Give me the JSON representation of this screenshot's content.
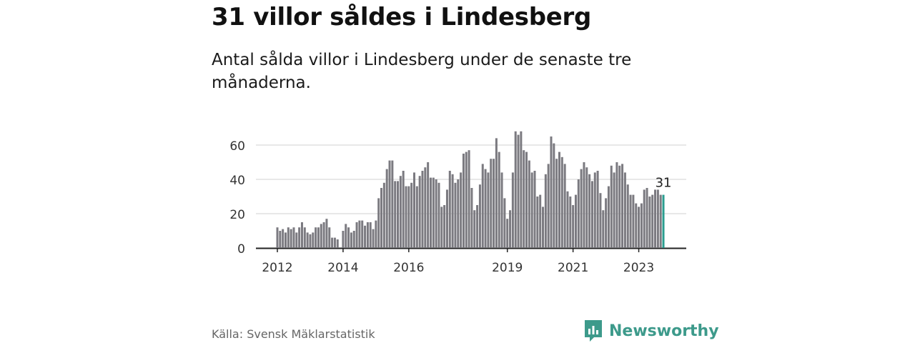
{
  "header": {
    "title": "31 villor såldes i Lindesberg",
    "subtitle": "Antal sålda villor i Lindesberg under de senaste tre månaderna."
  },
  "footer": {
    "source": "Källa: Svensk Mäklarstatistik",
    "brand": "Newsworthy",
    "brand_icon": "newsworthy-logo-icon"
  },
  "colors": {
    "bar": "#7b7a80",
    "highlight": "#2a9d8f",
    "grid": "#d9d9d9",
    "axis": "#222222",
    "brand": "#3d9a8b"
  },
  "chart_data": {
    "type": "bar",
    "start": "2012-01",
    "ylim": [
      0,
      75
    ],
    "yticks": [
      0,
      20,
      40,
      60
    ],
    "xtick_labels": [
      {
        "label": "2012",
        "month": "2012-01"
      },
      {
        "label": "2014",
        "month": "2014-01"
      },
      {
        "label": "2016",
        "month": "2016-01"
      },
      {
        "label": "2019",
        "month": "2019-01"
      },
      {
        "label": "2021",
        "month": "2021-01"
      },
      {
        "label": "2023",
        "month": "2023-01"
      }
    ],
    "highlight_label": "31",
    "values": [
      12,
      10,
      11,
      9,
      12,
      11,
      12,
      9,
      12,
      15,
      12,
      9,
      8,
      9,
      12,
      12,
      14,
      15,
      17,
      12,
      6,
      6,
      5,
      0,
      10,
      14,
      12,
      9,
      10,
      15,
      16,
      16,
      13,
      15,
      15,
      11,
      16,
      29,
      35,
      38,
      46,
      51,
      51,
      39,
      39,
      42,
      45,
      36,
      36,
      38,
      44,
      36,
      42,
      45,
      47,
      50,
      41,
      41,
      40,
      38,
      24,
      25,
      34,
      45,
      43,
      38,
      40,
      44,
      55,
      56,
      57,
      35,
      22,
      25,
      37,
      49,
      46,
      44,
      52,
      52,
      64,
      56,
      44,
      29,
      17,
      22,
      44,
      68,
      66,
      68,
      57,
      56,
      51,
      44,
      45,
      30,
      31,
      24,
      43,
      49,
      65,
      61,
      52,
      56,
      53,
      49,
      33,
      30,
      25,
      31,
      40,
      46,
      50,
      47,
      43,
      39,
      44,
      45,
      32,
      22,
      29,
      36,
      48,
      44,
      50,
      48,
      49,
      44,
      37,
      31,
      31,
      26,
      24,
      26,
      34,
      35,
      30,
      31,
      34,
      34,
      31,
      31
    ]
  }
}
